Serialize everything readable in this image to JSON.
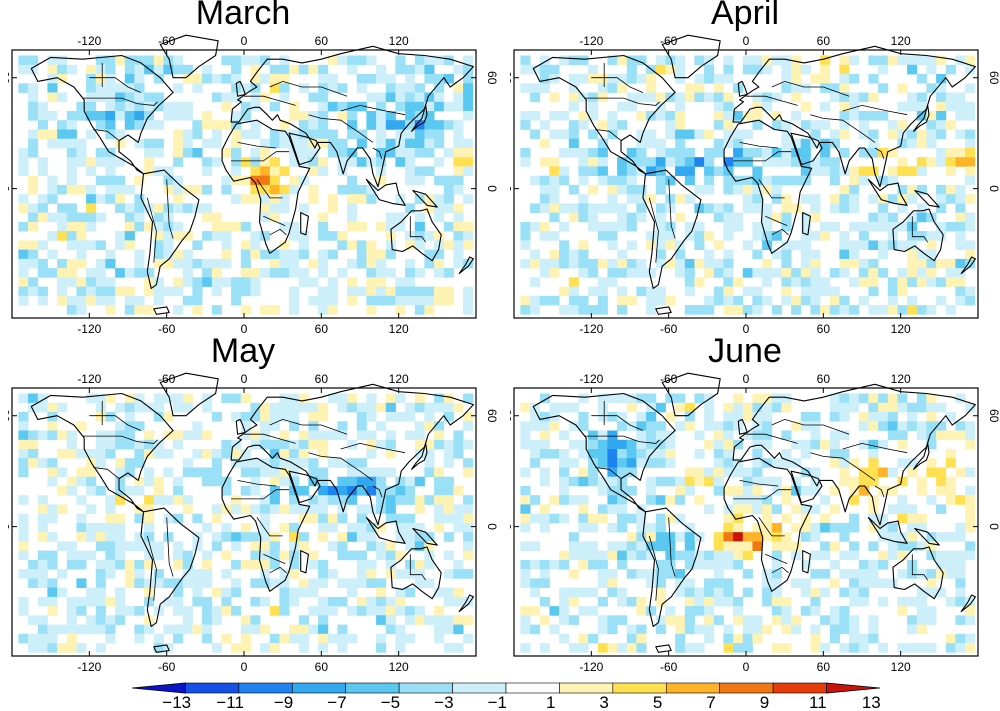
{
  "figure": {
    "panels": [
      {
        "title": "March",
        "seed": 11,
        "pattern": "march"
      },
      {
        "title": "April",
        "seed": 23,
        "pattern": "april"
      },
      {
        "title": "May",
        "seed": 37,
        "pattern": "may"
      },
      {
        "title": "June",
        "seed": 53,
        "pattern": "june"
      }
    ],
    "x_ticks": [
      "-120",
      "-60",
      "0",
      "60",
      "120"
    ],
    "x_tick_values": [
      -120,
      -60,
      0,
      60,
      120
    ],
    "y_ticks": [
      "60",
      "0"
    ],
    "y_tick_values": [
      60,
      0
    ],
    "colorbar": {
      "labels": [
        "−13",
        "−11",
        "−9",
        "−7",
        "−5",
        "−3",
        "−1",
        "1",
        "3",
        "5",
        "7",
        "9",
        "11",
        "13"
      ],
      "colors": [
        "#0a14c8",
        "#1450e6",
        "#1e82f0",
        "#32a8f0",
        "#5ac8f0",
        "#9ae0f6",
        "#cdeffa",
        "#ffffff",
        "#fff3b4",
        "#ffe050",
        "#ffb428",
        "#f07814",
        "#e63c0a",
        "#c8140a"
      ]
    }
  }
}
